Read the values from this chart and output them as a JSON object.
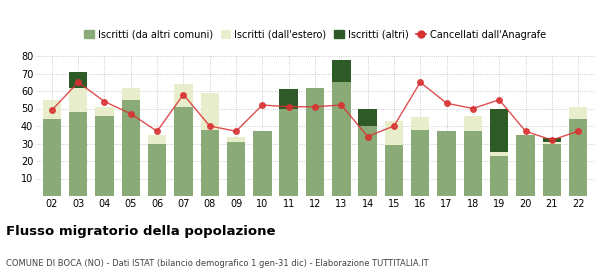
{
  "years": [
    "02",
    "03",
    "04",
    "05",
    "06",
    "07",
    "08",
    "09",
    "10",
    "11",
    "12",
    "13",
    "14",
    "15",
    "16",
    "17",
    "18",
    "19",
    "20",
    "21",
    "22"
  ],
  "iscritti_comuni": [
    44,
    48,
    46,
    55,
    30,
    51,
    38,
    31,
    37,
    50,
    62,
    65,
    40,
    29,
    38,
    37,
    37,
    23,
    35,
    30,
    44
  ],
  "iscritti_estero": [
    11,
    14,
    5,
    7,
    5,
    13,
    21,
    3,
    0,
    0,
    0,
    0,
    0,
    14,
    7,
    0,
    9,
    2,
    0,
    1,
    7
  ],
  "iscritti_altri": [
    0,
    9,
    0,
    0,
    0,
    0,
    0,
    0,
    0,
    11,
    0,
    13,
    10,
    0,
    0,
    0,
    0,
    25,
    0,
    2,
    0
  ],
  "cancellati": [
    49,
    65,
    54,
    47,
    37,
    58,
    40,
    37,
    52,
    51,
    51,
    52,
    34,
    40,
    65,
    53,
    50,
    55,
    37,
    32,
    37
  ],
  "color_comuni": "#8aab78",
  "color_estero": "#e8edcb",
  "color_altri": "#2d5a27",
  "color_cancellati": "#d93030",
  "title": "Flusso migratorio della popolazione",
  "subtitle": "COMUNE DI BOCA (NO) - Dati ISTAT (bilancio demografico 1 gen-31 dic) - Elaborazione TUTTITALIA.IT",
  "legend_labels": [
    "Iscritti (da altri comuni)",
    "Iscritti (dall'estero)",
    "Iscritti (altri)",
    "Cancellati dall'Anagrafe"
  ],
  "ylim": [
    0,
    80
  ],
  "yticks": [
    0,
    10,
    20,
    30,
    40,
    50,
    60,
    70,
    80
  ],
  "bg_color": "#ffffff"
}
